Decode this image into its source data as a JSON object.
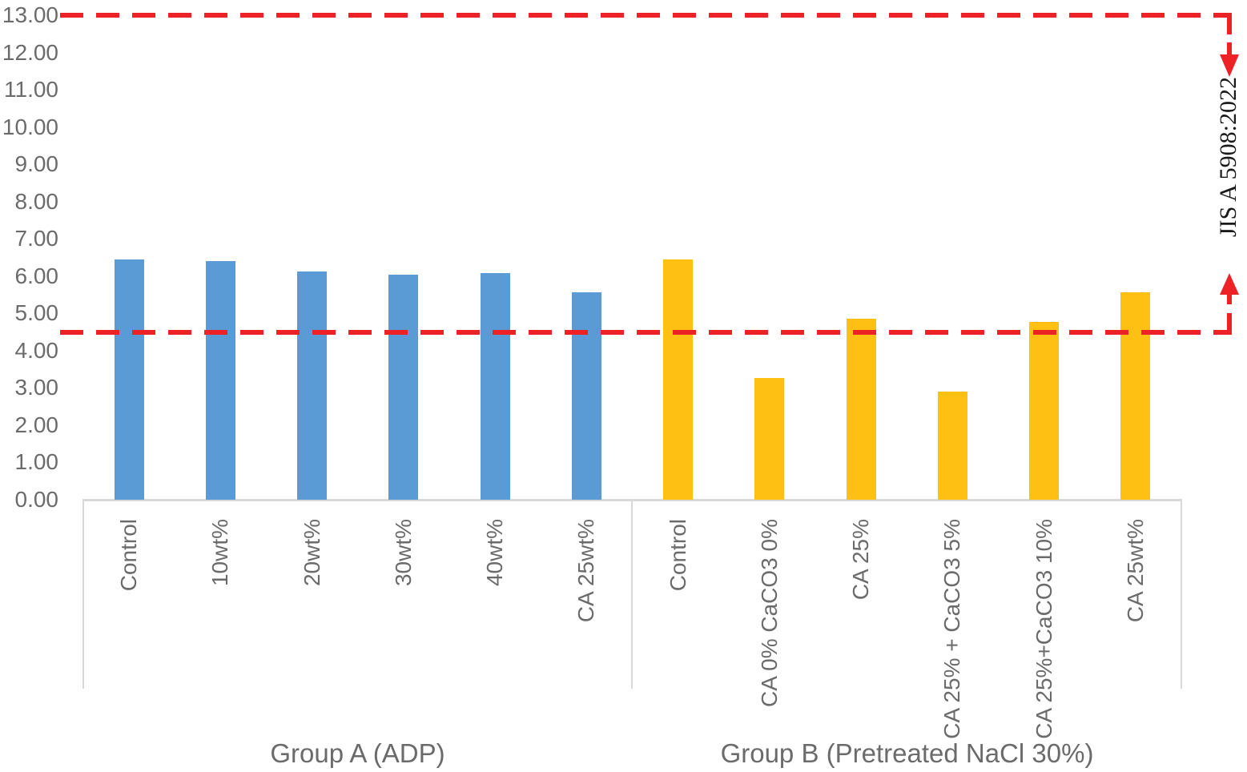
{
  "chart_data": {
    "type": "bar",
    "title": "",
    "xlabel": "",
    "ylabel": "",
    "ylim": [
      0,
      13
    ],
    "ytick_step": 1,
    "ytick_labels": [
      "0.00",
      "1.00",
      "2.00",
      "3.00",
      "4.00",
      "5.00",
      "6.00",
      "7.00",
      "8.00",
      "9.00",
      "10.00",
      "11.00",
      "12.00",
      "13.00"
    ],
    "grid": false,
    "legend": false,
    "groups": [
      {
        "label": "Group A (ADP)",
        "bar_color": "#5B9BD5",
        "categories": [
          "Control",
          "10wt%",
          "20wt%",
          "30wt%",
          "40wt%",
          "CA 25wt%"
        ],
        "values": [
          6.45,
          6.41,
          6.12,
          6.03,
          6.08,
          5.56
        ]
      },
      {
        "label": "Group B (Pretreated NaCl 30%)",
        "bar_color": "#FDC013",
        "categories": [
          "Control",
          "CA 0% CaCO3 0%",
          "CA 25%",
          "CA 25% + CaCO3 5%",
          "CA 25%+CaCO3 10%",
          "CA 25wt%"
        ],
        "values": [
          6.45,
          3.27,
          4.85,
          2.91,
          4.76,
          5.56
        ]
      }
    ],
    "reference_lines": [
      {
        "value": 13.0,
        "style": "dashed",
        "color": "#EC2227"
      },
      {
        "value": 4.5,
        "style": "dashed",
        "color": "#EC2227"
      }
    ],
    "annotation": {
      "text": "JIS A 5908:2022",
      "color": "#1A1A1A",
      "position": "right-vertical"
    }
  },
  "colors": {
    "background": "#FFFFFF",
    "axis_line": "#D9D9D9",
    "tick_text": "#6B6B6B",
    "reference_red": "#EC2227"
  }
}
